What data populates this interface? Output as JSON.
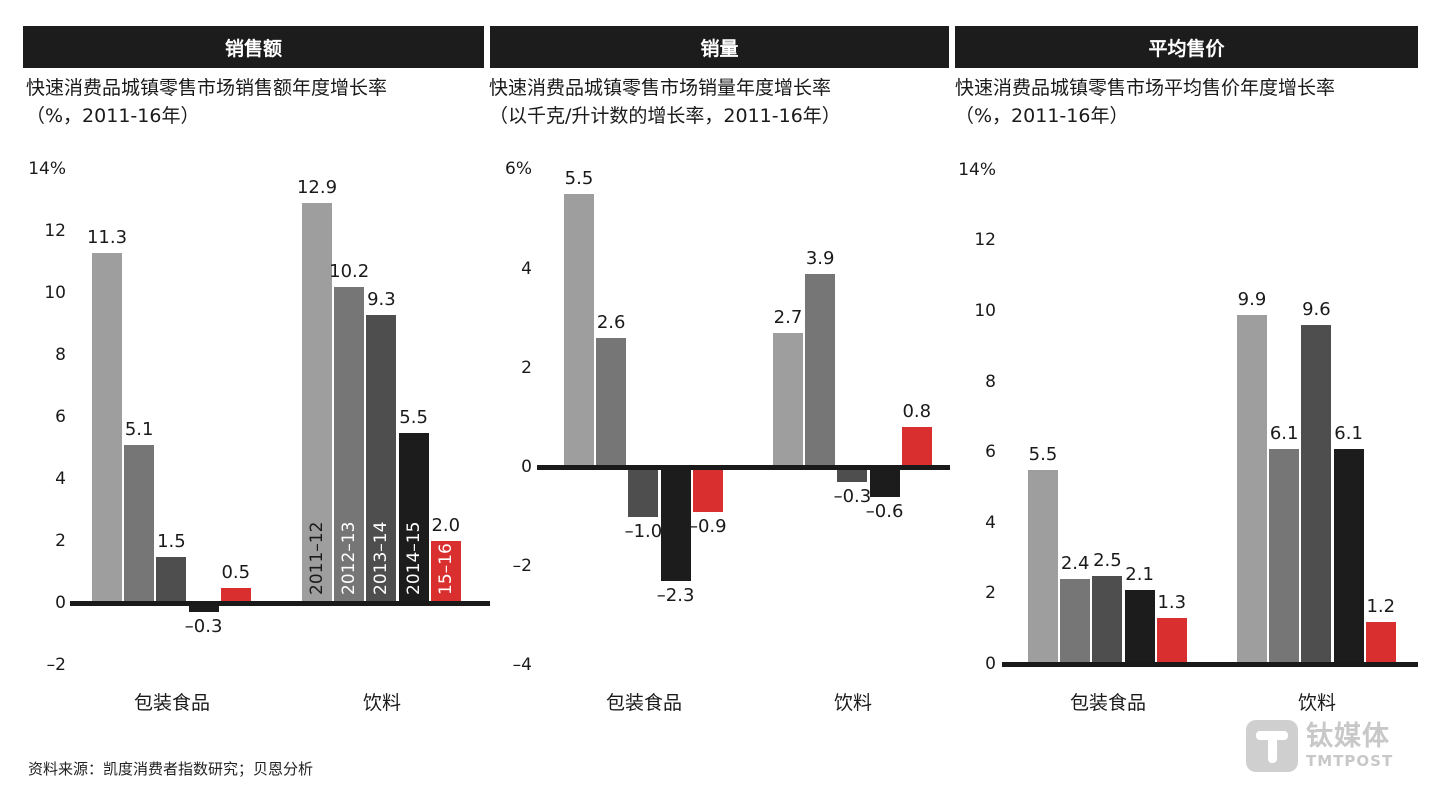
{
  "panels": [
    {
      "header": "销售额",
      "subtitle_line1": "快速消费品城镇零售市场销售额年度增长率",
      "subtitle_line2": "（%，2011-16年）",
      "ticks": [
        "14%",
        "12",
        "10",
        "8",
        "6",
        "4",
        "2",
        "0",
        "–2"
      ],
      "categories": [
        "包装食品",
        "饮料"
      ]
    },
    {
      "header": "销量",
      "subtitle_line1": "快速消费品城镇零售市场销量年度增长率",
      "subtitle_line2": "（以千克/升计数的增长率，2011-16年）",
      "ticks": [
        "6%",
        "4",
        "2",
        "0",
        "–2",
        "–4"
      ],
      "categories": [
        "包装食品",
        "饮料"
      ]
    },
    {
      "header": "平均售价",
      "subtitle_line1": "快速消费品城镇零售市场平均售价年度增长率",
      "subtitle_line2": "（%，2011-16年）",
      "ticks": [
        "14%",
        "12",
        "10",
        "8",
        "6",
        "4",
        "2",
        "0"
      ],
      "categories": [
        "包装食品",
        "饮料"
      ]
    }
  ],
  "series_labels": [
    "2011–12",
    "2012–13",
    "2013–14",
    "2014–15",
    "15–16"
  ],
  "colors": {
    "2011–12": "#9e9e9e",
    "2012–13": "#767676",
    "2013–14": "#4e4e4e",
    "2014–15": "#1c1c1c",
    "15–16": "#d9302f",
    "header_bg": "#1c1c1c"
  },
  "footer": {
    "source": "资料来源：凯度消费者指数研究；贝恩分析",
    "logo_cn": "钛媒体",
    "logo_en": "TMTPOST"
  },
  "chart_data": [
    {
      "type": "bar",
      "title": "销售额",
      "subtitle": "快速消费品城镇零售市场销售额年度增长率（%，2011-16年）",
      "xlabel": "",
      "ylabel": "%",
      "ylim": [
        -2,
        14
      ],
      "yticks": [
        -2,
        0,
        2,
        4,
        6,
        8,
        10,
        12,
        14
      ],
      "categories": [
        "包装食品",
        "饮料"
      ],
      "series": [
        {
          "name": "2011–12",
          "values": [
            11.3,
            12.9
          ]
        },
        {
          "name": "2012–13",
          "values": [
            5.1,
            10.2
          ]
        },
        {
          "name": "2013–14",
          "values": [
            1.5,
            9.3
          ]
        },
        {
          "name": "2014–15",
          "values": [
            -0.3,
            5.5
          ]
        },
        {
          "name": "15–16",
          "values": [
            0.5,
            2.0
          ]
        }
      ],
      "legend": "series names written vertically inside 饮料 bars"
    },
    {
      "type": "bar",
      "title": "销量",
      "subtitle": "快速消费品城镇零售市场销量年度增长率（以千克/升计数的增长率，2011-16年）",
      "xlabel": "",
      "ylabel": "%",
      "ylim": [
        -4,
        6
      ],
      "yticks": [
        -4,
        -2,
        0,
        2,
        4,
        6
      ],
      "categories": [
        "包装食品",
        "饮料"
      ],
      "series": [
        {
          "name": "2011–12",
          "values": [
            5.5,
            2.7
          ]
        },
        {
          "name": "2012–13",
          "values": [
            2.6,
            3.9
          ]
        },
        {
          "name": "2013–14",
          "values": [
            -1.0,
            -0.3
          ]
        },
        {
          "name": "2014–15",
          "values": [
            -2.3,
            -0.6
          ]
        },
        {
          "name": "15–16",
          "values": [
            -0.9,
            0.8
          ]
        }
      ]
    },
    {
      "type": "bar",
      "title": "平均售价",
      "subtitle": "快速消费品城镇零售市场平均售价年度增长率（%，2011-16年）",
      "xlabel": "",
      "ylabel": "%",
      "ylim": [
        0,
        14
      ],
      "yticks": [
        0,
        2,
        4,
        6,
        8,
        10,
        12,
        14
      ],
      "categories": [
        "包装食品",
        "饮料"
      ],
      "series": [
        {
          "name": "2011–12",
          "values": [
            5.5,
            9.9
          ]
        },
        {
          "name": "2012–13",
          "values": [
            2.4,
            6.1
          ]
        },
        {
          "name": "2013–14",
          "values": [
            2.5,
            9.6
          ]
        },
        {
          "name": "2014–15",
          "values": [
            2.1,
            6.1
          ]
        },
        {
          "name": "15–16",
          "values": [
            1.3,
            1.2
          ]
        }
      ]
    }
  ]
}
